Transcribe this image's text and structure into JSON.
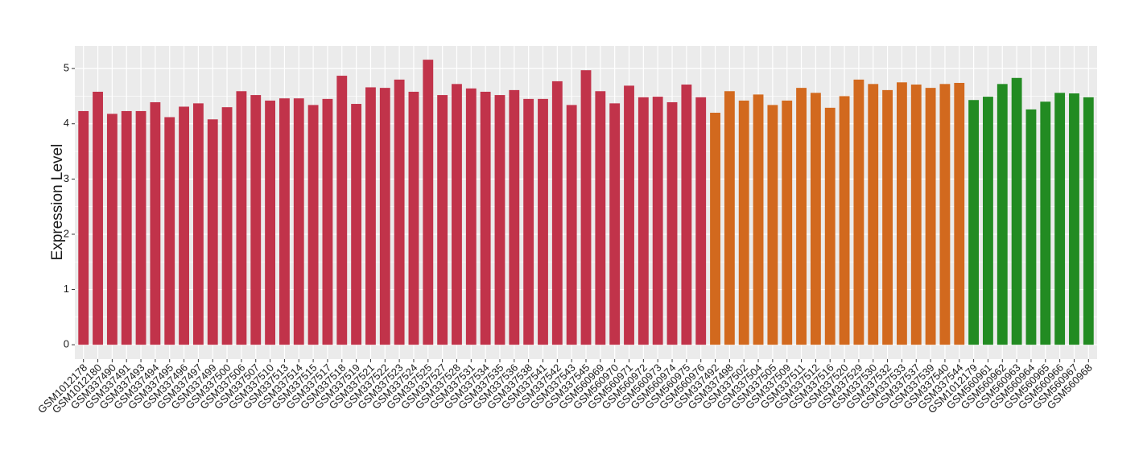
{
  "chart_data": {
    "type": "bar",
    "y_label": "Expression Level",
    "ylim": [
      -0.26,
      5.41
    ],
    "yticks": [
      0,
      1,
      2,
      3,
      4,
      5
    ],
    "grid": true,
    "series": [
      {
        "color": "#c1334a",
        "categories": [
          "GSM1012178",
          "GSM1012180",
          "GSM337490",
          "GSM337491",
          "GSM337493",
          "GSM337494",
          "GSM337495",
          "GSM337496",
          "GSM337497",
          "GSM337499",
          "GSM337500",
          "GSM337506",
          "GSM337507",
          "GSM337510",
          "GSM337513",
          "GSM337514",
          "GSM337515",
          "GSM337517",
          "GSM337518",
          "GSM337519",
          "GSM337521",
          "GSM337522",
          "GSM337523",
          "GSM337524",
          "GSM337525",
          "GSM337527",
          "GSM337528",
          "GSM337531",
          "GSM337534",
          "GSM337535",
          "GSM337536",
          "GSM337538",
          "GSM337541",
          "GSM337542",
          "GSM337543",
          "GSM337545",
          "GSM560969",
          "GSM560970",
          "GSM560971",
          "GSM560972",
          "GSM560973",
          "GSM560974",
          "GSM560975",
          "GSM560976"
        ],
        "values": [
          4.23,
          4.58,
          4.18,
          4.23,
          4.23,
          4.39,
          4.12,
          4.31,
          4.37,
          4.08,
          4.3,
          4.59,
          4.52,
          4.42,
          4.46,
          4.46,
          4.34,
          4.45,
          4.87,
          4.36,
          4.66,
          4.65,
          4.8,
          4.58,
          5.16,
          4.52,
          4.72,
          4.64,
          4.58,
          4.52,
          4.61,
          4.45,
          4.45,
          4.77,
          4.34,
          4.97,
          4.59,
          4.37,
          4.69,
          4.48,
          4.49,
          4.39,
          4.71,
          4.48
        ]
      },
      {
        "color": "#d2691e",
        "categories": [
          "GSM337492",
          "GSM337498",
          "GSM337502",
          "GSM337504",
          "GSM337505",
          "GSM337509",
          "GSM337511",
          "GSM337512",
          "GSM337516",
          "GSM337520",
          "GSM337529",
          "GSM337530",
          "GSM337532",
          "GSM337533",
          "GSM337537",
          "GSM337539",
          "GSM337540",
          "GSM337544"
        ],
        "values": [
          4.2,
          4.59,
          4.42,
          4.53,
          4.34,
          4.42,
          4.65,
          4.56,
          4.29,
          4.5,
          4.8,
          4.72,
          4.61,
          4.75,
          4.71,
          4.65,
          4.72,
          4.74
        ]
      },
      {
        "color": "#228b22",
        "categories": [
          "GSM1012179",
          "GSM560961",
          "GSM560962",
          "GSM560963",
          "GSM560964",
          "GSM560965",
          "GSM560966",
          "GSM560967",
          "GSM560968"
        ],
        "values": [
          4.43,
          4.49,
          4.72,
          4.83,
          4.26,
          4.4,
          4.56,
          4.55,
          4.48
        ]
      }
    ]
  }
}
